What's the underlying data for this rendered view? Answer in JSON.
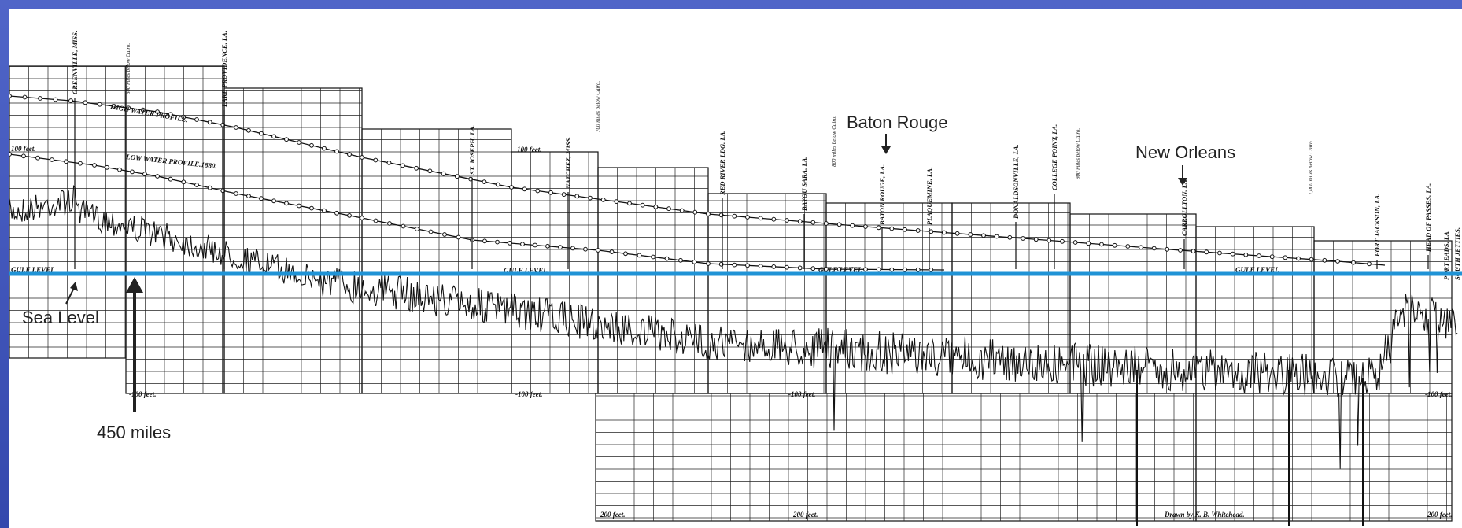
{
  "annotations": {
    "baton_rouge": "Baton Rouge",
    "new_orleans": "New Orleans",
    "sea_level": "Sea Level",
    "distance_450": "450 miles"
  },
  "profiles": {
    "high_water": "HIGH WATER PROFILE.",
    "low_water": "LOW WATER PROFILE.1880."
  },
  "depth_labels": [
    "100 feet.",
    "100 feet.",
    "-100 feet.",
    "-100 feet.",
    "-100 feet.",
    "-100 feet.",
    "-200 feet.",
    "-200 feet.",
    "-200 feet."
  ],
  "gulf_level_labels": [
    "GULF LEVEL",
    "GULF LEVEL",
    "GULF LEVEL",
    "GULF LEVEL"
  ],
  "towns": [
    "GREENVILLE, MISS.",
    "LAKE PROVIDENCE, LA.",
    "ST. JOSEPH, LA.",
    "NATCHEZ, MISS.",
    "RED RIVER LDG. LA.",
    "BAYOU SARA, LA.",
    "BATON ROUGE, LA.",
    "PLAQUEMINE, LA.",
    "DONALDSONVILLE, LA.",
    "COLLEGE POINT, LA.",
    "CARROLLTON, LA.",
    "FORT JACKSON, LA.",
    "HEAD OF PASSES, LA.",
    "PORT EADS, LA.",
    "SOUTH JETTIES."
  ],
  "mile_markers": [
    "500 miles below Cairo.",
    "700 miles below Cairo.",
    "800 miles below Cairo.",
    "900 miles below Cairo.",
    "1,000 miles below Cairo."
  ],
  "credit": "Drawn by K. B. Whitehead.",
  "colors": {
    "sea_level_line": "#1f93d6",
    "frame": "#3c4fb3",
    "grid": "#111111"
  }
}
